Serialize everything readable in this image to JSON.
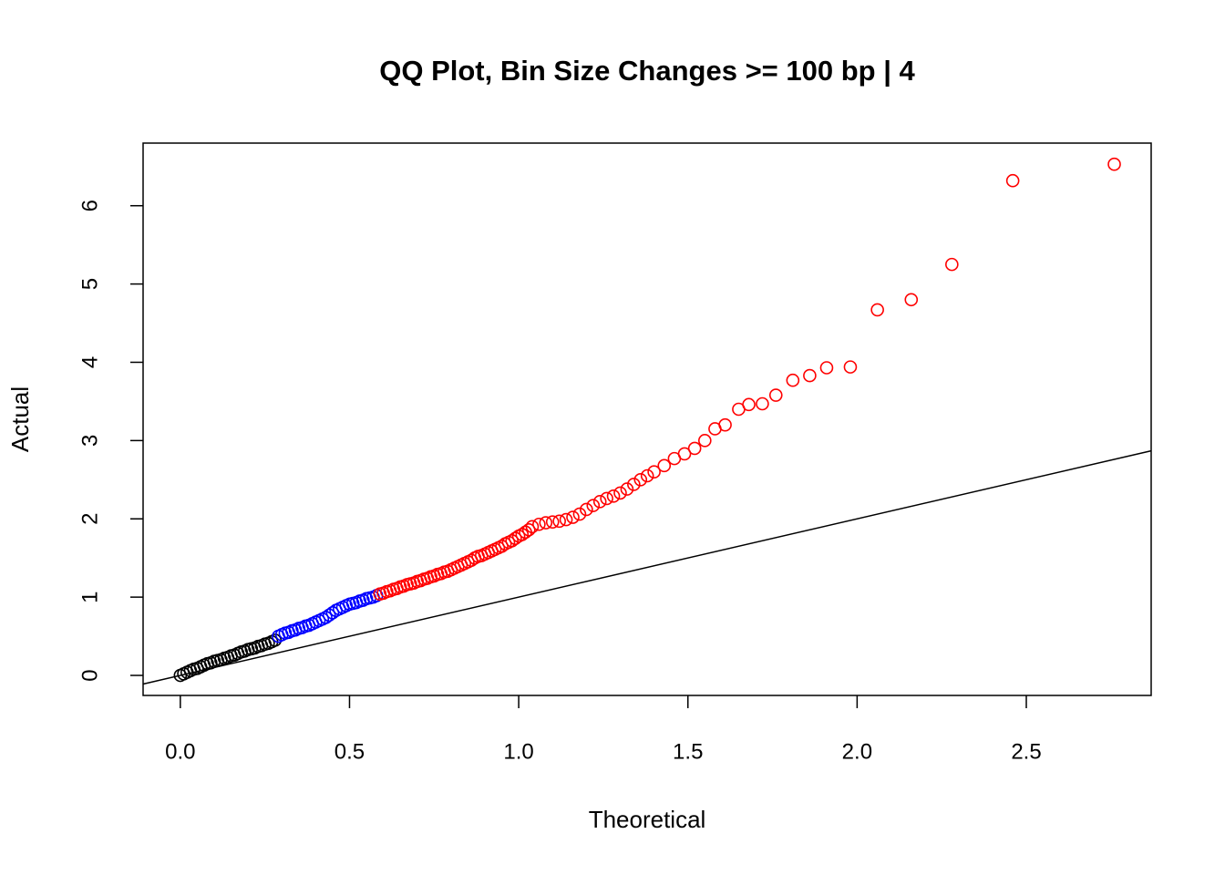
{
  "chart_data": {
    "type": "scatter",
    "title": "QQ Plot, Bin Size Changes >= 100 bp | 4",
    "x_label": "Theoretical",
    "y_label": "Actual",
    "xlim": [
      -0.11,
      2.869
    ],
    "ylim": [
      -0.256,
      6.8
    ],
    "xticks": [
      {
        "value": 0,
        "label": "0.0"
      },
      0.5,
      {
        "value": 1,
        "label": "1.0"
      },
      1.5,
      {
        "value": 2,
        "label": "2.0"
      },
      2.5
    ],
    "yticks": [
      0,
      1,
      2,
      3,
      4,
      5,
      6
    ],
    "reference_line": {
      "slope": 1,
      "intercept": 0
    },
    "series": [
      {
        "color": "#000000",
        "x": [
          0,
          0.01,
          0.02,
          0.03,
          0.04,
          0.05,
          0.06,
          0.07,
          0.08,
          0.09,
          0.1,
          0.11,
          0.12,
          0.13,
          0.14,
          0.15,
          0.16,
          0.17,
          0.18,
          0.19,
          0.2,
          0.21,
          0.22,
          0.23,
          0.24,
          0.25,
          0.26,
          0.27,
          0.28
        ],
        "y": [
          0,
          0.02,
          0.04,
          0.06,
          0.08,
          0.09,
          0.11,
          0.13,
          0.15,
          0.16,
          0.18,
          0.19,
          0.2,
          0.22,
          0.23,
          0.25,
          0.26,
          0.28,
          0.3,
          0.31,
          0.33,
          0.34,
          0.35,
          0.37,
          0.38,
          0.4,
          0.41,
          0.43,
          0.45
        ]
      },
      {
        "color": "#0000ff",
        "x": [
          0.29,
          0.3,
          0.31,
          0.32,
          0.33,
          0.34,
          0.35,
          0.36,
          0.37,
          0.38,
          0.39,
          0.4,
          0.41,
          0.42,
          0.43,
          0.44,
          0.45,
          0.46,
          0.47,
          0.48,
          0.49,
          0.5,
          0.51,
          0.52,
          0.53,
          0.54,
          0.55,
          0.56,
          0.57,
          0.58
        ],
        "y": [
          0.5,
          0.52,
          0.54,
          0.55,
          0.57,
          0.58,
          0.6,
          0.61,
          0.63,
          0.64,
          0.66,
          0.68,
          0.7,
          0.72,
          0.74,
          0.77,
          0.8,
          0.83,
          0.85,
          0.87,
          0.89,
          0.91,
          0.92,
          0.93,
          0.95,
          0.96,
          0.98,
          0.99,
          1.0,
          1.02
        ]
      },
      {
        "color": "#ff0000",
        "x": [
          0.59,
          0.6,
          0.61,
          0.62,
          0.63,
          0.64,
          0.65,
          0.66,
          0.67,
          0.68,
          0.69,
          0.7,
          0.71,
          0.72,
          0.73,
          0.74,
          0.75,
          0.76,
          0.77,
          0.78,
          0.79,
          0.8,
          0.81,
          0.82,
          0.83,
          0.84,
          0.85,
          0.86,
          0.87,
          0.88,
          0.89,
          0.9,
          0.91,
          0.92,
          0.93,
          0.94,
          0.95,
          0.96,
          0.97,
          0.98,
          0.99,
          1.0,
          1.01,
          1.02,
          1.03,
          1.04,
          1.06,
          1.08,
          1.1,
          1.12,
          1.14,
          1.16,
          1.18,
          1.2,
          1.22,
          1.24,
          1.26,
          1.28,
          1.3,
          1.32,
          1.34,
          1.36,
          1.38,
          1.4,
          1.43,
          1.46,
          1.49,
          1.52,
          1.55,
          1.58,
          1.61,
          1.65,
          1.68,
          1.72,
          1.76,
          1.81,
          1.86,
          1.91,
          1.98,
          2.06,
          2.16,
          2.28,
          2.46,
          2.76
        ],
        "y": [
          1.04,
          1.05,
          1.07,
          1.08,
          1.1,
          1.11,
          1.13,
          1.14,
          1.16,
          1.17,
          1.18,
          1.2,
          1.21,
          1.23,
          1.24,
          1.26,
          1.27,
          1.29,
          1.3,
          1.32,
          1.33,
          1.35,
          1.37,
          1.39,
          1.41,
          1.43,
          1.45,
          1.47,
          1.5,
          1.52,
          1.53,
          1.55,
          1.57,
          1.59,
          1.61,
          1.63,
          1.65,
          1.68,
          1.7,
          1.72,
          1.75,
          1.78,
          1.8,
          1.83,
          1.86,
          1.9,
          1.93,
          1.95,
          1.96,
          1.97,
          1.99,
          2.02,
          2.06,
          2.12,
          2.17,
          2.22,
          2.26,
          2.29,
          2.33,
          2.38,
          2.44,
          2.5,
          2.55,
          2.6,
          2.68,
          2.77,
          2.83,
          2.9,
          3.0,
          3.15,
          3.2,
          3.4,
          3.46,
          3.47,
          3.58,
          3.77,
          3.83,
          3.93,
          3.94,
          4.67,
          4.8,
          5.25,
          6.32,
          6.53
        ]
      }
    ]
  }
}
